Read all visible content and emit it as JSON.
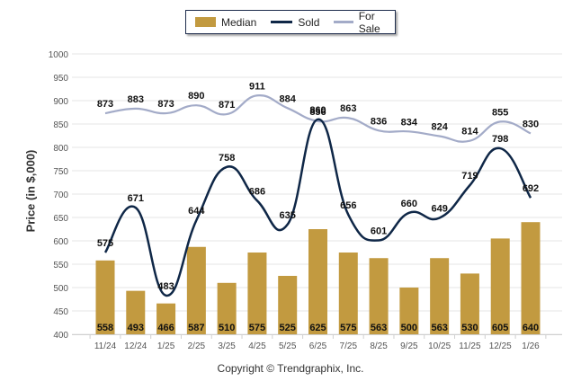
{
  "chart_data": {
    "type": "bar+line",
    "title": "",
    "xlabel": "",
    "ylabel": "Price (in $,000)",
    "ylim": [
      400,
      1000
    ],
    "yticks": [
      400,
      450,
      500,
      550,
      600,
      650,
      700,
      750,
      800,
      850,
      900,
      950,
      1000
    ],
    "grid": true,
    "legend_position": "top-center",
    "categories": [
      "11/24",
      "12/24",
      "1/25",
      "2/25",
      "3/25",
      "4/25",
      "5/25",
      "6/25",
      "7/25",
      "8/25",
      "9/25",
      "10/25",
      "11/25",
      "12/25",
      "1/26"
    ],
    "series": [
      {
        "name": "Median",
        "kind": "bar",
        "color": "#c29a40",
        "values": [
          558,
          493,
          466,
          587,
          510,
          575,
          525,
          625,
          575,
          563,
          500,
          563,
          530,
          605,
          640
        ]
      },
      {
        "name": "Sold",
        "kind": "line",
        "color": "#0f2747",
        "values": [
          575,
          671,
          483,
          644,
          758,
          686,
          635,
          860,
          656,
          601,
          660,
          649,
          719,
          798,
          692
        ]
      },
      {
        "name": "For Sale",
        "kind": "line",
        "color": "#a3abc8",
        "values": [
          873,
          883,
          873,
          890,
          871,
          911,
          884,
          856,
          863,
          836,
          834,
          824,
          814,
          855,
          830
        ]
      }
    ]
  },
  "legend": {
    "items": [
      {
        "label": "Median",
        "color": "#c29a40",
        "kind": "bar"
      },
      {
        "label": "Sold",
        "color": "#0f2747",
        "kind": "line"
      },
      {
        "label": "For Sale",
        "color": "#a3abc8",
        "kind": "line"
      }
    ]
  },
  "footer": {
    "copyright": "Copyright © Trendgraphix, Inc."
  }
}
